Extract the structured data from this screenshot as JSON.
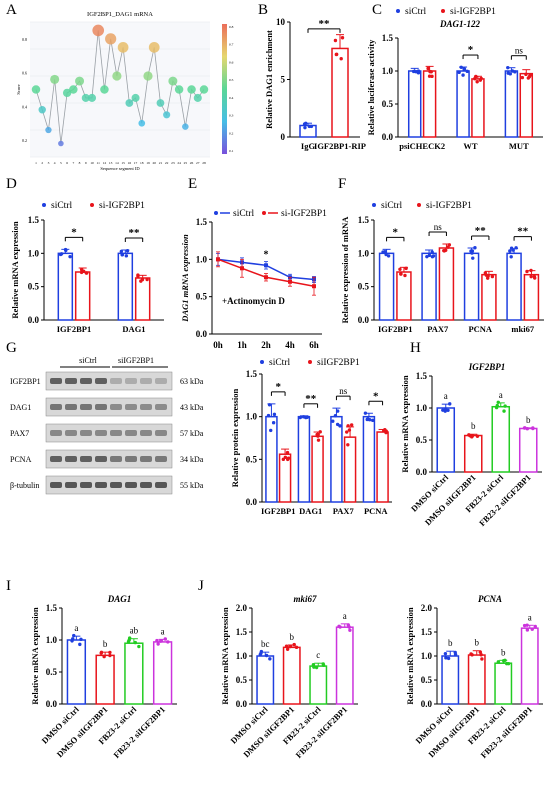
{
  "colors": {
    "blue": "#1f3fe0",
    "red": "#e8141b",
    "green": "#22cc22",
    "magenta": "#cc33dd",
    "gray": "#9aa0a6",
    "axis": "#000000"
  },
  "legend": {
    "ctrl": "siCtrl",
    "kd": "si-IGF2BP1",
    "kd_alt": "siIGF2BP1"
  },
  "chart_data": [
    {
      "id": "A",
      "type": "line",
      "title": "IGF2BP1_DAG1 mRNA",
      "xlabel": "Sequence segment ID",
      "ylabel": "Score",
      "x": [
        1,
        2,
        3,
        4,
        5,
        6,
        7,
        8,
        9,
        10,
        11,
        12,
        13,
        14,
        15,
        16,
        17,
        18,
        19,
        20,
        21,
        22,
        23,
        24,
        25,
        26,
        27,
        28
      ],
      "values": [
        0.5,
        0.38,
        0.26,
        0.56,
        0.18,
        0.48,
        0.5,
        0.55,
        0.45,
        0.45,
        0.85,
        0.5,
        0.8,
        0.58,
        0.75,
        0.42,
        0.45,
        0.3,
        0.58,
        0.75,
        0.42,
        0.35,
        0.55,
        0.5,
        0.28,
        0.5,
        0.45,
        0.5
      ],
      "ylim": [
        0.1,
        0.9
      ],
      "colorbar": {
        "min": 0.1,
        "max": 0.8,
        "ticks": [
          "0.8",
          "0.7",
          "0.6",
          "0.5",
          "0.4",
          "0.3",
          "0.2",
          "0.1"
        ]
      }
    },
    {
      "id": "B",
      "type": "bar",
      "ylabel": "Relative DAG1 enrichment",
      "categories": [
        "IgG",
        "IGF2BP1-RIP"
      ],
      "values": [
        1.0,
        7.7
      ],
      "err": [
        0.2,
        1.2
      ],
      "ylim": [
        0,
        10
      ],
      "yticks": [
        "0",
        "5",
        "10"
      ],
      "sig": [
        "**"
      ]
    },
    {
      "id": "C",
      "type": "bar",
      "title": "DAG1-122",
      "ylabel": "Relative luciferase activity",
      "categories": [
        "psiCHECK2",
        "WT",
        "MUT"
      ],
      "series": [
        {
          "name": "siCtrl",
          "values": [
            1.0,
            1.0,
            1.0
          ],
          "err": [
            0.04,
            0.06,
            0.05
          ]
        },
        {
          "name": "si-IGF2BP1",
          "values": [
            1.0,
            0.88,
            0.96
          ],
          "err": [
            0.07,
            0.04,
            0.06
          ]
        }
      ],
      "ylim": [
        0,
        1.5
      ],
      "yticks": [
        "0.0",
        "0.5",
        "1.0",
        "1.5"
      ],
      "sig": [
        "",
        "*",
        "ns"
      ]
    },
    {
      "id": "D",
      "type": "bar",
      "ylabel": "Relative mRNA expression",
      "categories": [
        "IGF2BP1",
        "DAG1"
      ],
      "series": [
        {
          "name": "siCtrl",
          "values": [
            1.0,
            1.0
          ],
          "err": [
            0.06,
            0.05
          ]
        },
        {
          "name": "si-IGF2BP1",
          "values": [
            0.72,
            0.63
          ],
          "err": [
            0.06,
            0.04
          ]
        }
      ],
      "ylim": [
        0,
        1.5
      ],
      "yticks": [
        "0.0",
        "0.5",
        "1.0",
        "1.5"
      ],
      "sig": [
        "*",
        "**"
      ]
    },
    {
      "id": "E",
      "type": "line",
      "ylabel": "DAG1 mRNA expression",
      "annotation": "+Actinomycin D",
      "categories": [
        "0h",
        "1h",
        "2h",
        "4h",
        "6h"
      ],
      "series": [
        {
          "name": "siCtrl",
          "values": [
            1.0,
            0.96,
            0.92,
            0.76,
            0.73
          ],
          "err": [
            0.08,
            0.06,
            0.05,
            0.04,
            0.04
          ]
        },
        {
          "name": "si-IGF2BP1",
          "values": [
            1.0,
            0.88,
            0.76,
            0.7,
            0.64
          ],
          "err": [
            0.1,
            0.12,
            0.05,
            0.06,
            0.12
          ]
        }
      ],
      "ylim": [
        0,
        1.5
      ],
      "yticks": [
        "0.0",
        "0.5",
        "1.0",
        "1.5"
      ],
      "sig_point": {
        "index": 2,
        "label": "*"
      }
    },
    {
      "id": "F",
      "type": "bar",
      "ylabel": "Relative expression of mRNA",
      "categories": [
        "IGF2BP1",
        "PAX7",
        "PCNA",
        "mki67"
      ],
      "series": [
        {
          "name": "siCtrl",
          "values": [
            1.0,
            1.0,
            1.0,
            1.0
          ],
          "err": [
            0.06,
            0.05,
            0.08,
            0.07
          ]
        },
        {
          "name": "si-IGF2BP1",
          "values": [
            0.72,
            1.08,
            0.68,
            0.68
          ],
          "err": [
            0.07,
            0.06,
            0.05,
            0.06
          ]
        }
      ],
      "ylim": [
        0,
        1.5
      ],
      "yticks": [
        "0.0",
        "0.5",
        "1.0",
        "1.5"
      ],
      "sig": [
        "*",
        "ns",
        "**",
        "**"
      ]
    },
    {
      "id": "G",
      "type": "bar",
      "ylabel": "Relative protein expression",
      "categories": [
        "IGF2BP1",
        "DAG1",
        "PAX7",
        "PCNA"
      ],
      "series": [
        {
          "name": "siCtrl",
          "values": [
            1.0,
            1.0,
            1.0,
            1.0
          ],
          "err": [
            0.15,
            0.01,
            0.1,
            0.04
          ]
        },
        {
          "name": "siIGF2BP1",
          "values": [
            0.56,
            0.77,
            0.76,
            0.82
          ],
          "err": [
            0.06,
            0.05,
            0.12,
            0.03
          ]
        }
      ],
      "ylim": [
        0,
        1.5
      ],
      "yticks": [
        "0.0",
        "0.5",
        "1.0",
        "1.5"
      ],
      "sig": [
        "*",
        "**",
        "ns",
        "*"
      ]
    },
    {
      "id": "H",
      "type": "bar",
      "title": "IGF2BP1",
      "ylabel": "Relative mRNA expression",
      "categories": [
        "DMSO siCtrl",
        "DMSO siIGF2BP1",
        "FB23-2 siCtrl",
        "FB23-2 siIGF2BP1"
      ],
      "values": [
        1.0,
        0.57,
        1.02,
        0.68
      ],
      "err": [
        0.06,
        0.02,
        0.06,
        0.01
      ],
      "letters": [
        "a",
        "b",
        "a",
        "b"
      ],
      "ylim": [
        0,
        1.5
      ],
      "yticks": [
        "0.0",
        "0.5",
        "1.0",
        "1.5"
      ]
    },
    {
      "id": "I",
      "type": "bar",
      "title": "DAG1",
      "ylabel": "Relative mRNA expression",
      "categories": [
        "DMSO siCtrl",
        "DMSO siIGF2BP1",
        "FB23-2 siCtrl",
        "FB23-2 siIGF2BP1"
      ],
      "values": [
        1.0,
        0.76,
        0.95,
        0.97
      ],
      "err": [
        0.06,
        0.05,
        0.07,
        0.04
      ],
      "letters": [
        "a",
        "b",
        "ab",
        "a"
      ],
      "ylim": [
        0,
        1.5
      ],
      "yticks": [
        "0.0",
        "0.5",
        "1.0",
        "1.5"
      ]
    },
    {
      "id": "J1",
      "type": "bar",
      "title": "mki67",
      "ylabel": "Relative mRNA expression",
      "categories": [
        "DMSO siCtrl",
        "DMSO siIGF2BP1",
        "FB23-2 siCtrl",
        "FB23-2 siIGF2BP1"
      ],
      "values": [
        1.0,
        1.18,
        0.79,
        1.6
      ],
      "err": [
        0.08,
        0.05,
        0.06,
        0.07
      ],
      "letters": [
        "bc",
        "b",
        "c",
        "a"
      ],
      "ylim": [
        0,
        2.0
      ],
      "yticks": [
        "0.0",
        "0.5",
        "1.0",
        "1.5",
        "2.0"
      ]
    },
    {
      "id": "J2",
      "type": "bar",
      "title": "PCNA",
      "ylabel": "Relative mRNA expression",
      "categories": [
        "DMSO siCtrl",
        "DMSO siIGF2BP1",
        "FB23-2 siCtrl",
        "FB23-2 siIGF2BP1"
      ],
      "values": [
        1.0,
        1.02,
        0.85,
        1.58
      ],
      "err": [
        0.1,
        0.09,
        0.06,
        0.06
      ],
      "letters": [
        "b",
        "b",
        "b",
        "a"
      ],
      "ylim": [
        0,
        2.0
      ],
      "yticks": [
        "0.0",
        "0.5",
        "1.0",
        "1.5",
        "2.0"
      ]
    }
  ],
  "blot": {
    "groups": [
      "siCtrl",
      "siIGF2BP1"
    ],
    "rows": [
      {
        "label": "IGF2BP1",
        "kda": "63 kDa"
      },
      {
        "label": "DAG1",
        "kda": "43 kDa"
      },
      {
        "label": "PAX7",
        "kda": "57 kDa"
      },
      {
        "label": "PCNA",
        "kda": "34 kDa"
      },
      {
        "label": "β-tubulin",
        "kda": "55 kDa"
      }
    ]
  }
}
